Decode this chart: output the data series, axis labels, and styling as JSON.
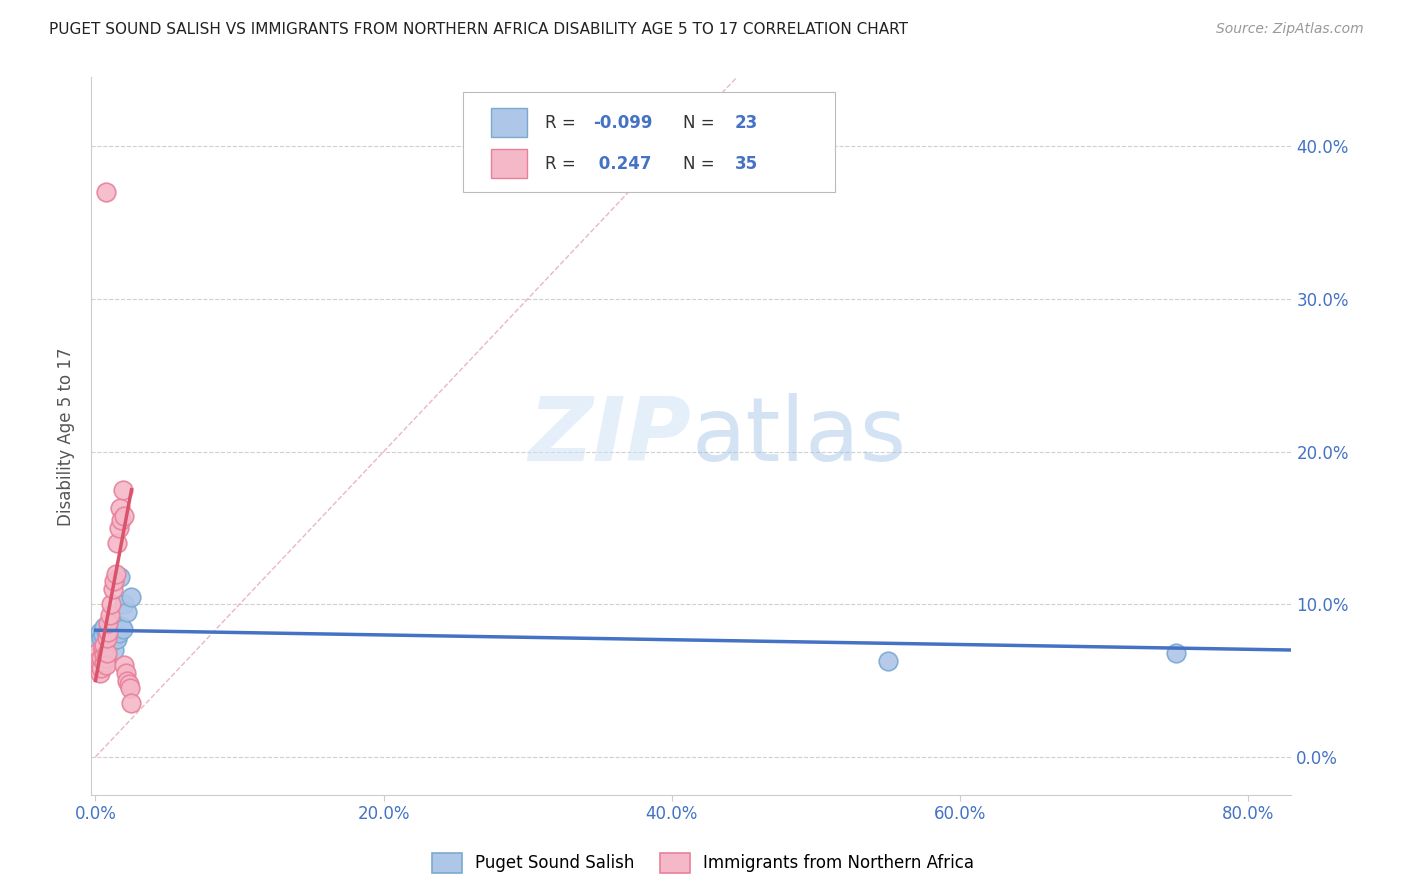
{
  "title": "PUGET SOUND SALISH VS IMMIGRANTS FROM NORTHERN AFRICA DISABILITY AGE 5 TO 17 CORRELATION CHART",
  "source": "Source: ZipAtlas.com",
  "ylabel": "Disability Age 5 to 17",
  "xlim": [
    -0.003,
    0.83
  ],
  "ylim": [
    -0.025,
    0.445
  ],
  "blue_R": "-0.099",
  "blue_N": "23",
  "pink_R": "0.247",
  "pink_N": "35",
  "blue_scatter_x": [
    0.002,
    0.003,
    0.004,
    0.005,
    0.006,
    0.007,
    0.008,
    0.009,
    0.01,
    0.011,
    0.012,
    0.013,
    0.014,
    0.015,
    0.016,
    0.017,
    0.018,
    0.019,
    0.02,
    0.022,
    0.025,
    0.55,
    0.75
  ],
  "blue_scatter_y": [
    0.075,
    0.082,
    0.078,
    0.08,
    0.085,
    0.072,
    0.08,
    0.076,
    0.074,
    0.088,
    0.083,
    0.07,
    0.079,
    0.077,
    0.081,
    0.118,
    0.086,
    0.084,
    0.1,
    0.095,
    0.105,
    0.063,
    0.068
  ],
  "pink_scatter_x": [
    0.001,
    0.002,
    0.003,
    0.003,
    0.004,
    0.004,
    0.005,
    0.005,
    0.006,
    0.006,
    0.006,
    0.007,
    0.007,
    0.008,
    0.008,
    0.009,
    0.009,
    0.01,
    0.011,
    0.012,
    0.013,
    0.014,
    0.015,
    0.016,
    0.017,
    0.018,
    0.019,
    0.02,
    0.021,
    0.022,
    0.023,
    0.024,
    0.025,
    0.02,
    0.007
  ],
  "pink_scatter_y": [
    0.068,
    0.063,
    0.055,
    0.06,
    0.058,
    0.065,
    0.07,
    0.072,
    0.062,
    0.067,
    0.073,
    0.065,
    0.06,
    0.068,
    0.078,
    0.082,
    0.088,
    0.093,
    0.1,
    0.11,
    0.115,
    0.12,
    0.14,
    0.15,
    0.163,
    0.155,
    0.175,
    0.06,
    0.055,
    0.05,
    0.048,
    0.045,
    0.035,
    0.158,
    0.37
  ],
  "blue_line_x": [
    0.0,
    0.83
  ],
  "blue_line_y": [
    0.083,
    0.07
  ],
  "pink_line_x": [
    0.0,
    0.025
  ],
  "pink_line_y": [
    0.05,
    0.175
  ],
  "diag_line_x": [
    0.0,
    0.445
  ],
  "diag_line_y": [
    0.0,
    0.445
  ],
  "title_color": "#222222",
  "source_color": "#999999",
  "ylabel_color": "#555555",
  "tick_color": "#4472c4",
  "blue_color": "#aec6e8",
  "blue_edge_color": "#7aaad0",
  "pink_color": "#f4b8c8",
  "pink_edge_color": "#e8809a",
  "blue_line_color": "#4472c4",
  "pink_line_color": "#d9536a",
  "diag_line_color": "#e8b8c0",
  "grid_color": "#d0d0d0",
  "background_color": "#ffffff",
  "legend_label_blue": "Puget Sound Salish",
  "legend_label_pink": "Immigrants from Northern Africa",
  "xtick_vals": [
    0.0,
    0.2,
    0.4,
    0.6,
    0.8
  ],
  "xtick_labels": [
    "0.0%",
    "20.0%",
    "40.0%",
    "60.0%",
    "80.0%"
  ],
  "ytick_vals": [
    0.0,
    0.1,
    0.2,
    0.3,
    0.4
  ],
  "ytick_labels": [
    "0.0%",
    "10.0%",
    "20.0%",
    "30.0%",
    "40.0%"
  ]
}
